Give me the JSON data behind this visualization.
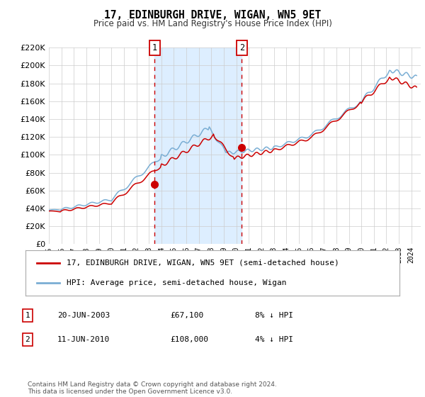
{
  "title": "17, EDINBURGH DRIVE, WIGAN, WN5 9ET",
  "subtitle": "Price paid vs. HM Land Registry's House Price Index (HPI)",
  "legend_line1": "17, EDINBURGH DRIVE, WIGAN, WN5 9ET (semi-detached house)",
  "legend_line2": "HPI: Average price, semi-detached house, Wigan",
  "transaction1_date": "20-JUN-2003",
  "transaction1_price": "£67,100",
  "transaction1_hpi": "8% ↓ HPI",
  "transaction2_date": "11-JUN-2010",
  "transaction2_price": "£108,000",
  "transaction2_hpi": "4% ↓ HPI",
  "footer": "Contains HM Land Registry data © Crown copyright and database right 2024.\nThis data is licensed under the Open Government Licence v3.0.",
  "color_red": "#cc0000",
  "color_blue": "#7aaed4",
  "color_shade": "#ddeeff",
  "ylim": [
    0,
    220000
  ],
  "yticks": [
    0,
    20000,
    40000,
    60000,
    80000,
    100000,
    120000,
    140000,
    160000,
    180000,
    200000,
    220000
  ],
  "transaction1_x": 2003.46,
  "transaction1_y": 67100,
  "transaction2_x": 2010.44,
  "transaction2_y": 108000,
  "xlim_start": 1995.0,
  "xlim_end": 2024.75
}
